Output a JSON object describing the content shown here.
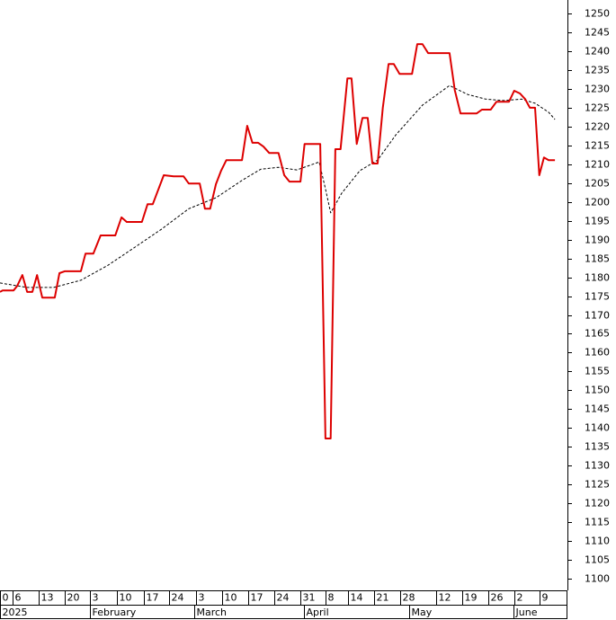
{
  "chart_data": {
    "type": "line",
    "xlim": [
      0,
      108.8
    ],
    "ylim": [
      1096.9,
      1253.6
    ],
    "yticks": [
      1100,
      1105,
      1110,
      1115,
      1120,
      1125,
      1130,
      1135,
      1140,
      1145,
      1150,
      1155,
      1160,
      1165,
      1170,
      1175,
      1180,
      1185,
      1190,
      1195,
      1200,
      1205,
      1210,
      1215,
      1220,
      1225,
      1230,
      1235,
      1240,
      1245,
      1250
    ],
    "xticks": [
      {
        "value": 0,
        "label": "0"
      },
      {
        "value": 2.4,
        "label": "6"
      },
      {
        "value": 7.4,
        "label": "13"
      },
      {
        "value": 12.4,
        "label": "20"
      },
      {
        "value": 17.2,
        "label": "3"
      },
      {
        "value": 22.4,
        "label": "10"
      },
      {
        "value": 27.6,
        "label": "17"
      },
      {
        "value": 32.4,
        "label": "24"
      },
      {
        "value": 37.6,
        "label": "3"
      },
      {
        "value": 42.6,
        "label": "10"
      },
      {
        "value": 47.6,
        "label": "17"
      },
      {
        "value": 52.6,
        "label": "24"
      },
      {
        "value": 57.6,
        "label": "31"
      },
      {
        "value": 62.4,
        "label": "8"
      },
      {
        "value": 66.7,
        "label": "14"
      },
      {
        "value": 71.7,
        "label": "21"
      },
      {
        "value": 76.7,
        "label": "28"
      },
      {
        "value": 83.6,
        "label": "12"
      },
      {
        "value": 88.6,
        "label": "19"
      },
      {
        "value": 93.6,
        "label": "26"
      },
      {
        "value": 98.6,
        "label": "2"
      },
      {
        "value": 103.4,
        "label": "9"
      }
    ],
    "month_ticks": [
      {
        "value": 0,
        "label": "2025"
      },
      {
        "value": 17.2,
        "label": "February"
      },
      {
        "value": 37.2,
        "label": "March"
      },
      {
        "value": 58.3,
        "label": "April"
      },
      {
        "value": 78.4,
        "label": "May"
      },
      {
        "value": 98.4,
        "label": "June"
      }
    ],
    "series": [
      {
        "color": "#dd0000",
        "style": "solid",
        "x": [
          0,
          0.5,
          2.6,
          3.3,
          4.3,
          5.2,
          6.2,
          7.1,
          8.1,
          10.5,
          11.4,
          12.4,
          15.5,
          16.4,
          17.9,
          19.3,
          22.1,
          23.3,
          24.3,
          27.2,
          28.3,
          29.3,
          31.4,
          33.3,
          35.2,
          36.2,
          38.3,
          39.3,
          40.3,
          41.4,
          42.4,
          43.4,
          46.4,
          47.4,
          48.4,
          49.5,
          50.5,
          51.6,
          53.4,
          54.5,
          55.5,
          57.6,
          58.4,
          61.4,
          62.4,
          63.4,
          64.3,
          65.3,
          66.6,
          67.4,
          68.4,
          69.5,
          70.5,
          71.4,
          72.4,
          73.4,
          74.5,
          75.5,
          76.6,
          79.0,
          80.0,
          81.0,
          82.1,
          86.2,
          87.2,
          88.3,
          91.4,
          92.4,
          94.1,
          95.2,
          97.6,
          98.6,
          99.7,
          100.7,
          101.6,
          102.6,
          103.4,
          104.3,
          105.2,
          106.4
        ],
        "values": [
          1176.1,
          1176.5,
          1176.5,
          1177.7,
          1180.6,
          1176.1,
          1176.1,
          1180.6,
          1174.6,
          1174.6,
          1181.1,
          1181.6,
          1181.6,
          1186.3,
          1186.3,
          1191.1,
          1191.1,
          1195.9,
          1194.7,
          1194.7,
          1199.4,
          1199.4,
          1207.1,
          1206.8,
          1206.8,
          1204.9,
          1204.9,
          1198.2,
          1198.2,
          1204.7,
          1208.3,
          1211.1,
          1211.1,
          1220.2,
          1215.7,
          1215.7,
          1214.7,
          1213.0,
          1213.0,
          1207.1,
          1205.4,
          1205.4,
          1215.4,
          1215.4,
          1137.2,
          1137.2,
          1214.0,
          1214.0,
          1232.8,
          1232.8,
          1215.4,
          1222.3,
          1222.3,
          1210.2,
          1210.2,
          1225.0,
          1236.6,
          1236.6,
          1234.0,
          1234.0,
          1241.9,
          1241.9,
          1239.5,
          1239.5,
          1229.7,
          1223.5,
          1223.5,
          1224.5,
          1224.5,
          1226.6,
          1226.6,
          1229.5,
          1228.8,
          1227.3,
          1225.0,
          1225.0,
          1207.1,
          1211.8,
          1211.1,
          1211.1
        ]
      },
      {
        "color": "#000000",
        "style": "dashed",
        "x": [
          0,
          5.2,
          10.3,
          15.5,
          20.7,
          25.9,
          31.0,
          36.2,
          41.4,
          46.6,
          50.0,
          53.4,
          56.9,
          61.2,
          62.4,
          63.4,
          65.5,
          69.0,
          72.4,
          75.9,
          81.0,
          86.2,
          89.7,
          93.1,
          96.6,
          100.0,
          102.6,
          105.2,
          106.4
        ],
        "values": [
          1178.5,
          1177.3,
          1177.3,
          1179.2,
          1183.2,
          1188.0,
          1192.8,
          1198.2,
          1201.1,
          1205.9,
          1208.7,
          1209.2,
          1208.5,
          1210.6,
          1203.5,
          1197.1,
          1202.3,
          1208.3,
          1211.1,
          1217.8,
          1225.7,
          1230.9,
          1228.5,
          1227.3,
          1226.9,
          1227.3,
          1226.2,
          1223.8,
          1221.9
        ]
      }
    ]
  }
}
